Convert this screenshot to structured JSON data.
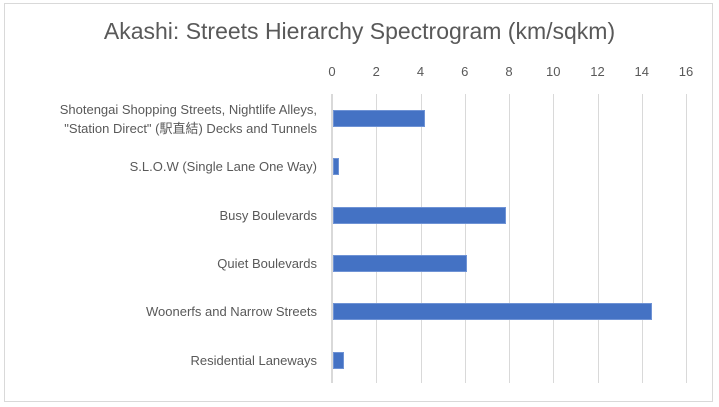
{
  "chart_data": {
    "type": "bar",
    "orientation": "horizontal",
    "title": "Akashi:  Streets Hierarchy Spectrogram (km/sqkm)",
    "xlabel": "",
    "ylabel": "",
    "xlim": [
      0,
      16
    ],
    "x_ticks": [
      "0",
      "2",
      "4",
      "6",
      "8",
      "10",
      "12",
      "14",
      "16"
    ],
    "x_axis_position": "top",
    "grid": true,
    "legend": null,
    "bar_color": "#4472c4",
    "categories": [
      "Shotengai Shopping Streets, Nightlife Alleys, \"Station Direct\" (駅直結) Decks and Tunnels",
      "S.L.O.W (Single Lane One Way)",
      "Busy Boulevards",
      "Quiet Boulevards",
      "Woonerfs and Narrow Streets",
      "Residential Laneways"
    ],
    "category_lines": [
      [
        "Shotengai Shopping Streets, Nightlife Alleys,",
        "\"Station Direct\" (駅直結) Decks and Tunnels"
      ],
      [
        "S.L.O.W (Single Lane One Way)"
      ],
      [
        "Busy Boulevards"
      ],
      [
        "Quiet Boulevards"
      ],
      [
        "Woonerfs and Narrow Streets"
      ],
      [
        "Residential Laneways"
      ]
    ],
    "values": [
      4.2,
      0.3,
      7.85,
      6.1,
      14.45,
      0.55
    ]
  }
}
